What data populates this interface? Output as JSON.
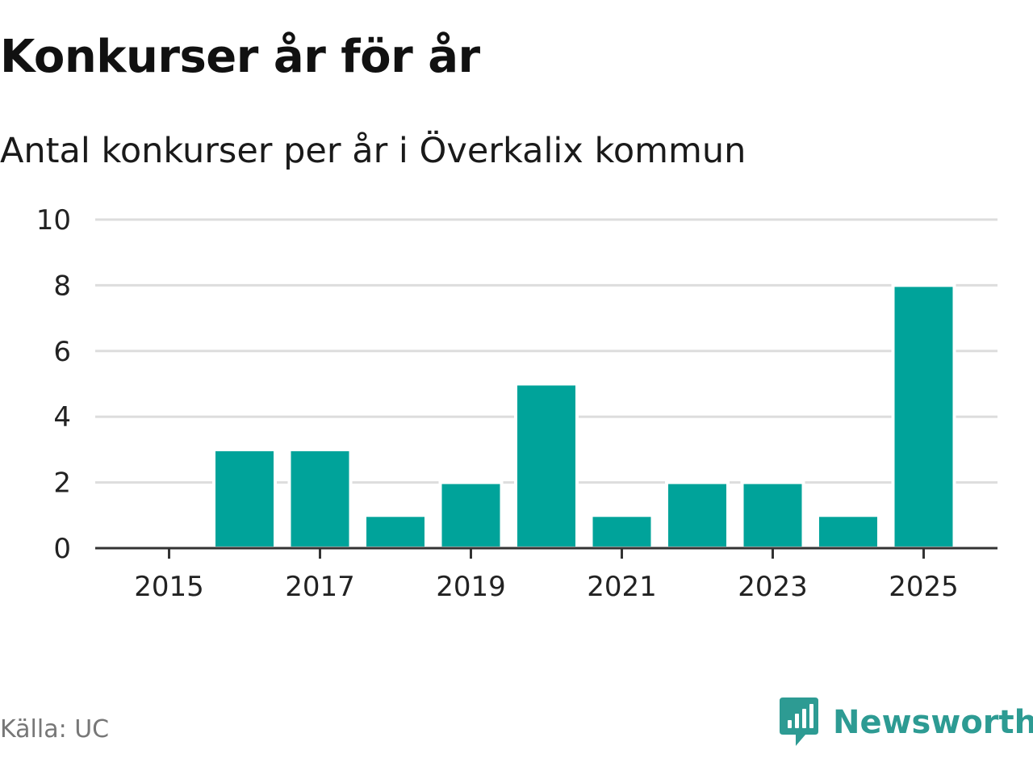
{
  "colors": {
    "bar": "#00a39a",
    "grid": "#dddddd",
    "axis": "#333333",
    "brand": "#2d9b93"
  },
  "source": "Källa: UC",
  "brand": {
    "name": "Newsworthy",
    "logo_icon": "newsworthy-chart-bubble-icon"
  },
  "chart_data": {
    "type": "bar",
    "title": "Konkurser år för år",
    "subtitle": "Antal konkurser per år i Överkalix kommun",
    "xlabel": "",
    "ylabel": "",
    "categories": [
      "2015",
      "2016",
      "2017",
      "2018",
      "2019",
      "2020",
      "2021",
      "2022",
      "2023",
      "2024",
      "2025"
    ],
    "values": [
      0,
      3,
      3,
      1,
      2,
      5,
      1,
      2,
      2,
      1,
      8
    ],
    "ylim": [
      0,
      10
    ],
    "yticks": [
      "0",
      "2",
      "4",
      "6",
      "8",
      "10"
    ],
    "xticks": [
      "2015",
      "2017",
      "2019",
      "2021",
      "2023",
      "2025"
    ],
    "grid": true
  }
}
